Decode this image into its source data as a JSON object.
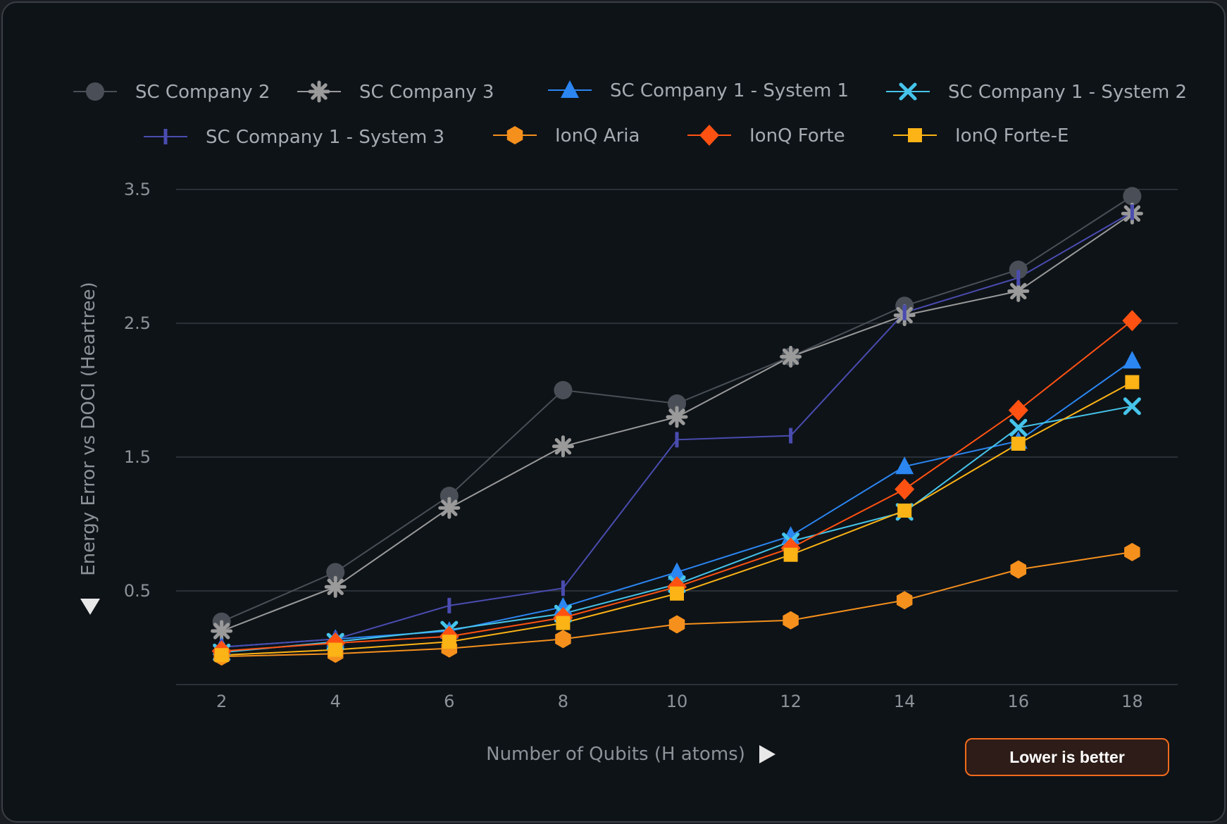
{
  "chart_data": {
    "type": "line",
    "title": "",
    "xlabel": "Number of Qubits (H atoms)",
    "ylabel": "Energy Error vs DOCI (Heartree)",
    "x": [
      2,
      4,
      6,
      8,
      10,
      12,
      14,
      16,
      18
    ],
    "xlim": [
      1.2,
      18.8
    ],
    "ylim": [
      -0.2,
      3.5
    ],
    "yticks": [
      0.5,
      1.5,
      2.5,
      3.5
    ],
    "grid": true,
    "legend_position": "top",
    "series": [
      {
        "name": "SC Company 2",
        "color": "#4a4f57",
        "marker": "circle",
        "values": [
          0.27,
          0.64,
          1.21,
          2.0,
          1.9,
          2.25,
          2.63,
          2.9,
          3.45
        ]
      },
      {
        "name": "SC Company 3",
        "color": "#9a9a9a",
        "marker": "asterisk",
        "values": [
          0.2,
          0.53,
          1.12,
          1.58,
          1.8,
          2.25,
          2.56,
          2.74,
          3.32
        ]
      },
      {
        "name": "SC Company 1 - System 1",
        "color": "#2b86f2",
        "marker": "triangle",
        "values": [
          0.08,
          0.14,
          0.2,
          0.38,
          0.64,
          0.91,
          1.43,
          1.62,
          2.22
        ]
      },
      {
        "name": "SC Company 1 - System 2",
        "color": "#46c4ea",
        "marker": "x",
        "values": [
          0.04,
          0.12,
          0.21,
          0.33,
          0.55,
          0.87,
          1.09,
          1.72,
          1.88
        ]
      },
      {
        "name": "SC Company 1 - System 3",
        "color": "#4a4cb0",
        "marker": "vline",
        "values": [
          0.08,
          0.14,
          0.39,
          0.52,
          1.63,
          1.66,
          2.58,
          2.84,
          3.33
        ]
      },
      {
        "name": "IonQ Aria",
        "color": "#f5901d",
        "marker": "hexagon",
        "values": [
          0.01,
          0.03,
          0.07,
          0.14,
          0.25,
          0.28,
          0.43,
          0.66,
          0.79
        ]
      },
      {
        "name": "IonQ Forte",
        "color": "#ff5212",
        "marker": "diamond",
        "values": [
          0.05,
          0.11,
          0.16,
          0.3,
          0.53,
          0.82,
          1.26,
          1.85,
          2.52
        ]
      },
      {
        "name": "IonQ Forte-E",
        "color": "#fbb315",
        "marker": "square",
        "values": [
          0.02,
          0.06,
          0.12,
          0.26,
          0.48,
          0.77,
          1.1,
          1.6,
          2.06
        ]
      }
    ],
    "annotations": {
      "badge": "Lower is better"
    }
  }
}
